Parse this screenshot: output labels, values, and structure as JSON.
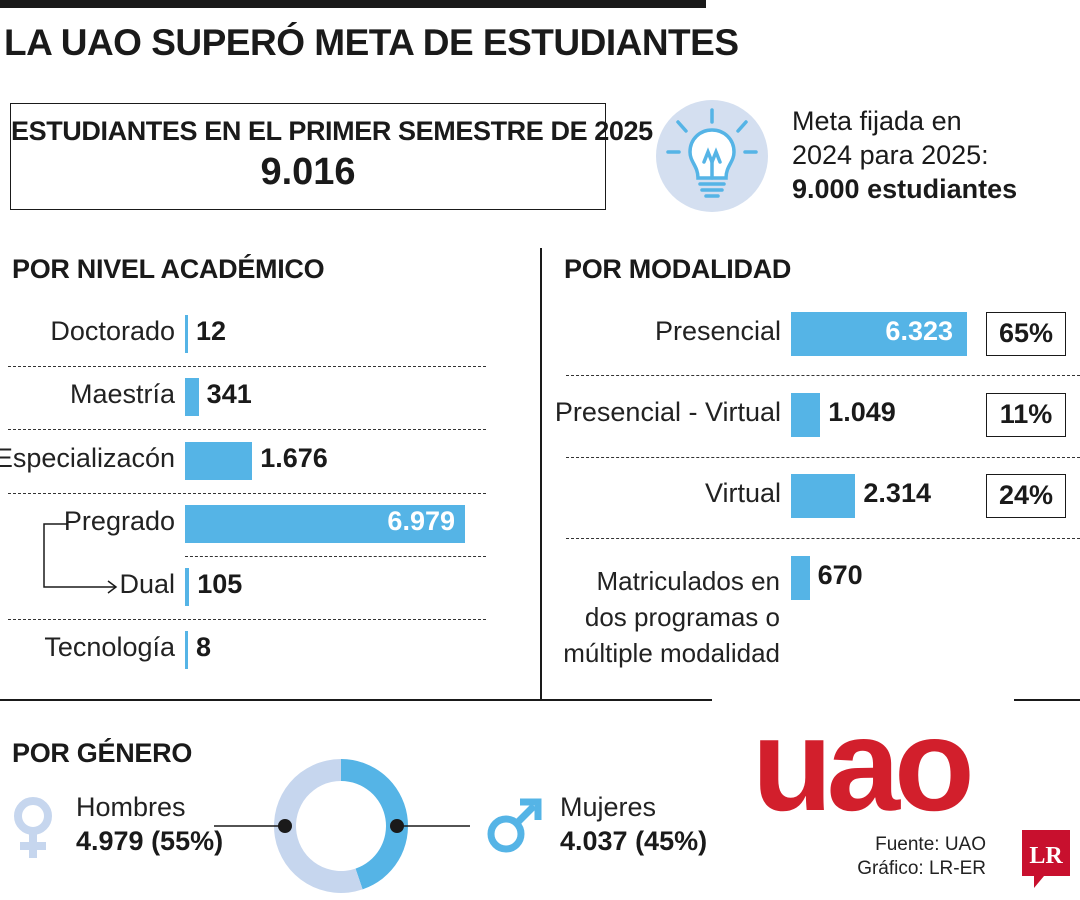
{
  "title": "LA UAO SUPERÓ META DE ESTUDIANTES",
  "total": {
    "label": "ESTUDIANTES EN EL PRIMER SEMESTRE DE 2025",
    "value": "9.016"
  },
  "goal": {
    "line1": "Meta fijada en",
    "line2": "2024 para 2025:",
    "line3": "9.000 estudiantes",
    "icon": "lightbulb-icon"
  },
  "colors": {
    "bar": "#55b4e6",
    "donut_light": "#c6d6ee",
    "donut_dark": "#55b4e6",
    "logo": "#d21f2c"
  },
  "chart_data": [
    {
      "type": "bar",
      "title": "POR NIVEL ACADÉMICO",
      "categories": [
        "Doctorado",
        "Maestría",
        "Especializacón",
        "Pregrado",
        "Dual",
        "Tecnología"
      ],
      "values": [
        12,
        341,
        1676,
        6979,
        105,
        8
      ],
      "labels": [
        "12",
        "341",
        "1.676",
        "6.979",
        "105",
        "8"
      ]
    },
    {
      "type": "bar",
      "title": "POR MODALIDAD",
      "categories": [
        "Presencial",
        "Presencial - Virtual",
        "Virtual",
        "Matriculados en dos programas o múltiple modalidad"
      ],
      "values": [
        6323,
        1049,
        2314,
        670
      ],
      "labels": [
        "6.323",
        "1.049",
        "2.314",
        "670"
      ],
      "percentages": [
        "65%",
        "11%",
        "24%",
        null
      ]
    },
    {
      "type": "pie",
      "title": "POR GÉNERO",
      "categories": [
        "Hombres",
        "Mujeres"
      ],
      "values": [
        4979,
        4037
      ],
      "labels": [
        "4.979 (55%)",
        "4.037 (45%)"
      ],
      "percent": [
        55,
        45
      ]
    }
  ],
  "matriculados": {
    "line1": "Matriculados en",
    "line2": "dos programas o",
    "line3": "múltiple modalidad"
  },
  "logo": {
    "text": "uao"
  },
  "source": {
    "line1": "Fuente: UAO",
    "line2": "Gráfico: LR-ER"
  },
  "lr_logo": {
    "text": "LR"
  }
}
